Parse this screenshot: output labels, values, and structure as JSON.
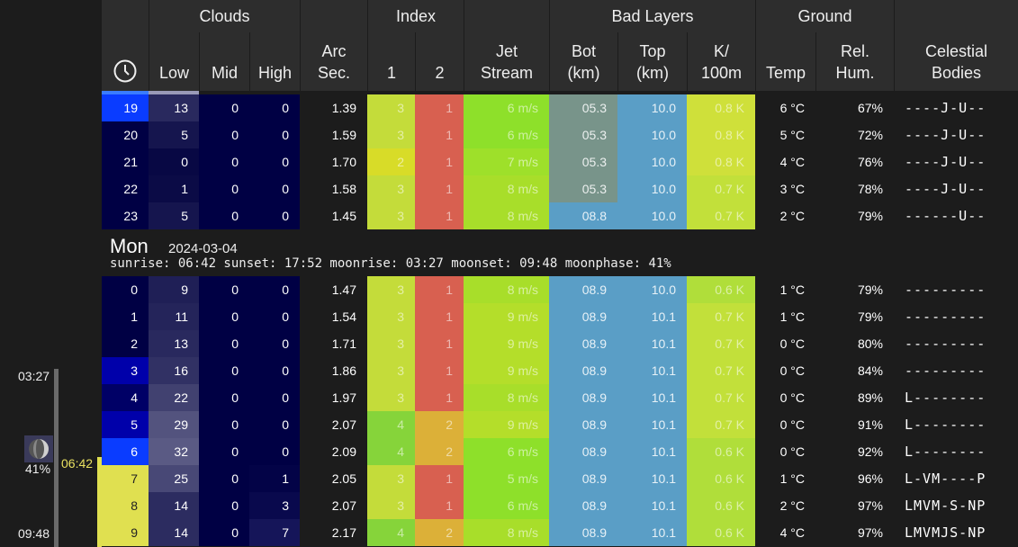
{
  "header": {
    "groups": {
      "clouds": "Clouds",
      "index": "Index",
      "bad_layers": "Bad Layers",
      "ground": "Ground"
    },
    "columns": {
      "low": "Low",
      "mid": "Mid",
      "high": "High",
      "arc_l1": "Arc",
      "arc_l2": "Sec.",
      "idx1": "1",
      "idx2": "2",
      "jet_l1": "Jet",
      "jet_l2": "Stream",
      "bot_l1": "Bot",
      "bot_l2": "(km)",
      "top_l1": "Top",
      "top_l2": "(km)",
      "k_l1": "K/",
      "k_l2": "100m",
      "temp": "Temp",
      "rh_l1": "Rel.",
      "rh_l2": "Hum.",
      "cel_l1": "Celestial",
      "cel_l2": "Bodies"
    }
  },
  "day": {
    "name": "Mon",
    "date": "2024-03-04",
    "info": "sunrise: 06:42 sunset: 17:52 moonrise: 03:27 moonset: 09:48 moonphase: 41%"
  },
  "side": {
    "moonrise": "03:27",
    "sunrise": "06:42",
    "moonset": "09:48",
    "phase": "41%"
  },
  "rows_before": [
    {
      "hour": "19",
      "low": "13",
      "mid": "0",
      "high": "0",
      "arc": "1.39",
      "i1": "3",
      "i2": "1",
      "jet": "6 m/s",
      "bot": "05.3",
      "top": "10.0",
      "k": "0.8 K",
      "temp": "6 °C",
      "rh": "67%",
      "cel": "----J-U--"
    },
    {
      "hour": "20",
      "low": "5",
      "mid": "0",
      "high": "0",
      "arc": "1.59",
      "i1": "3",
      "i2": "1",
      "jet": "6 m/s",
      "bot": "05.3",
      "top": "10.0",
      "k": "0.8 K",
      "temp": "5 °C",
      "rh": "72%",
      "cel": "----J-U--"
    },
    {
      "hour": "21",
      "low": "0",
      "mid": "0",
      "high": "0",
      "arc": "1.70",
      "i1": "2",
      "i2": "1",
      "jet": "7 m/s",
      "bot": "05.3",
      "top": "10.0",
      "k": "0.8 K",
      "temp": "4 °C",
      "rh": "76%",
      "cel": "----J-U--"
    },
    {
      "hour": "22",
      "low": "1",
      "mid": "0",
      "high": "0",
      "arc": "1.58",
      "i1": "3",
      "i2": "1",
      "jet": "8 m/s",
      "bot": "05.3",
      "top": "10.0",
      "k": "0.7 K",
      "temp": "3 °C",
      "rh": "78%",
      "cel": "----J-U--"
    },
    {
      "hour": "23",
      "low": "5",
      "mid": "0",
      "high": "0",
      "arc": "1.45",
      "i1": "3",
      "i2": "1",
      "jet": "8 m/s",
      "bot": "08.8",
      "top": "10.0",
      "k": "0.7 K",
      "temp": "2 °C",
      "rh": "79%",
      "cel": "------U--"
    }
  ],
  "rows_after": [
    {
      "hour": "0",
      "low": "9",
      "mid": "0",
      "high": "0",
      "arc": "1.47",
      "i1": "3",
      "i2": "1",
      "jet": "8 m/s",
      "bot": "08.9",
      "top": "10.0",
      "k": "0.6 K",
      "temp": "1 °C",
      "rh": "79%",
      "cel": "---------"
    },
    {
      "hour": "1",
      "low": "11",
      "mid": "0",
      "high": "0",
      "arc": "1.54",
      "i1": "3",
      "i2": "1",
      "jet": "9 m/s",
      "bot": "08.9",
      "top": "10.1",
      "k": "0.7 K",
      "temp": "1 °C",
      "rh": "79%",
      "cel": "---------"
    },
    {
      "hour": "2",
      "low": "13",
      "mid": "0",
      "high": "0",
      "arc": "1.71",
      "i1": "3",
      "i2": "1",
      "jet": "9 m/s",
      "bot": "08.9",
      "top": "10.1",
      "k": "0.7 K",
      "temp": "0 °C",
      "rh": "80%",
      "cel": "---------"
    },
    {
      "hour": "3",
      "low": "16",
      "mid": "0",
      "high": "0",
      "arc": "1.86",
      "i1": "3",
      "i2": "1",
      "jet": "9 m/s",
      "bot": "08.9",
      "top": "10.1",
      "k": "0.7 K",
      "temp": "0 °C",
      "rh": "84%",
      "cel": "---------"
    },
    {
      "hour": "4",
      "low": "22",
      "mid": "0",
      "high": "0",
      "arc": "1.97",
      "i1": "3",
      "i2": "1",
      "jet": "8 m/s",
      "bot": "08.9",
      "top": "10.1",
      "k": "0.7 K",
      "temp": "0 °C",
      "rh": "89%",
      "cel": "L--------"
    },
    {
      "hour": "5",
      "low": "29",
      "mid": "0",
      "high": "0",
      "arc": "2.07",
      "i1": "4",
      "i2": "2",
      "jet": "9 m/s",
      "bot": "08.9",
      "top": "10.1",
      "k": "0.7 K",
      "temp": "0 °C",
      "rh": "91%",
      "cel": "L--------"
    },
    {
      "hour": "6",
      "low": "32",
      "mid": "0",
      "high": "0",
      "arc": "2.09",
      "i1": "4",
      "i2": "2",
      "jet": "6 m/s",
      "bot": "08.9",
      "top": "10.1",
      "k": "0.6 K",
      "temp": "0 °C",
      "rh": "92%",
      "cel": "L--------"
    },
    {
      "hour": "7",
      "low": "25",
      "mid": "0",
      "high": "1",
      "arc": "2.05",
      "i1": "3",
      "i2": "1",
      "jet": "5 m/s",
      "bot": "08.9",
      "top": "10.1",
      "k": "0.6 K",
      "temp": "1 °C",
      "rh": "96%",
      "cel": "L-VM----P"
    },
    {
      "hour": "8",
      "low": "14",
      "mid": "0",
      "high": "3",
      "arc": "2.07",
      "i1": "3",
      "i2": "1",
      "jet": "6 m/s",
      "bot": "08.9",
      "top": "10.1",
      "k": "0.6 K",
      "temp": "2 °C",
      "rh": "97%",
      "cel": "LMVM-S-NP"
    },
    {
      "hour": "9",
      "low": "14",
      "mid": "0",
      "high": "7",
      "arc": "2.17",
      "i1": "4",
      "i2": "2",
      "jet": "8 m/s",
      "bot": "08.9",
      "top": "10.1",
      "k": "0.6 K",
      "temp": "4 °C",
      "rh": "97%",
      "cel": "LMVMJS-NP"
    }
  ],
  "colors": {
    "bg": "#1c1c1c",
    "header_bg": "#2d2d2d",
    "night": "#000044",
    "hour_blue": "#0000aa",
    "hour_bright": "#0a3cff",
    "hour_day": "#e0e050",
    "jet_green": "#9ee22a",
    "bot_gray": "#78948a",
    "bot_blue": "#5aa0c8",
    "top_blue": "#5aa0c8",
    "k_yellow": "#c8e03a"
  }
}
